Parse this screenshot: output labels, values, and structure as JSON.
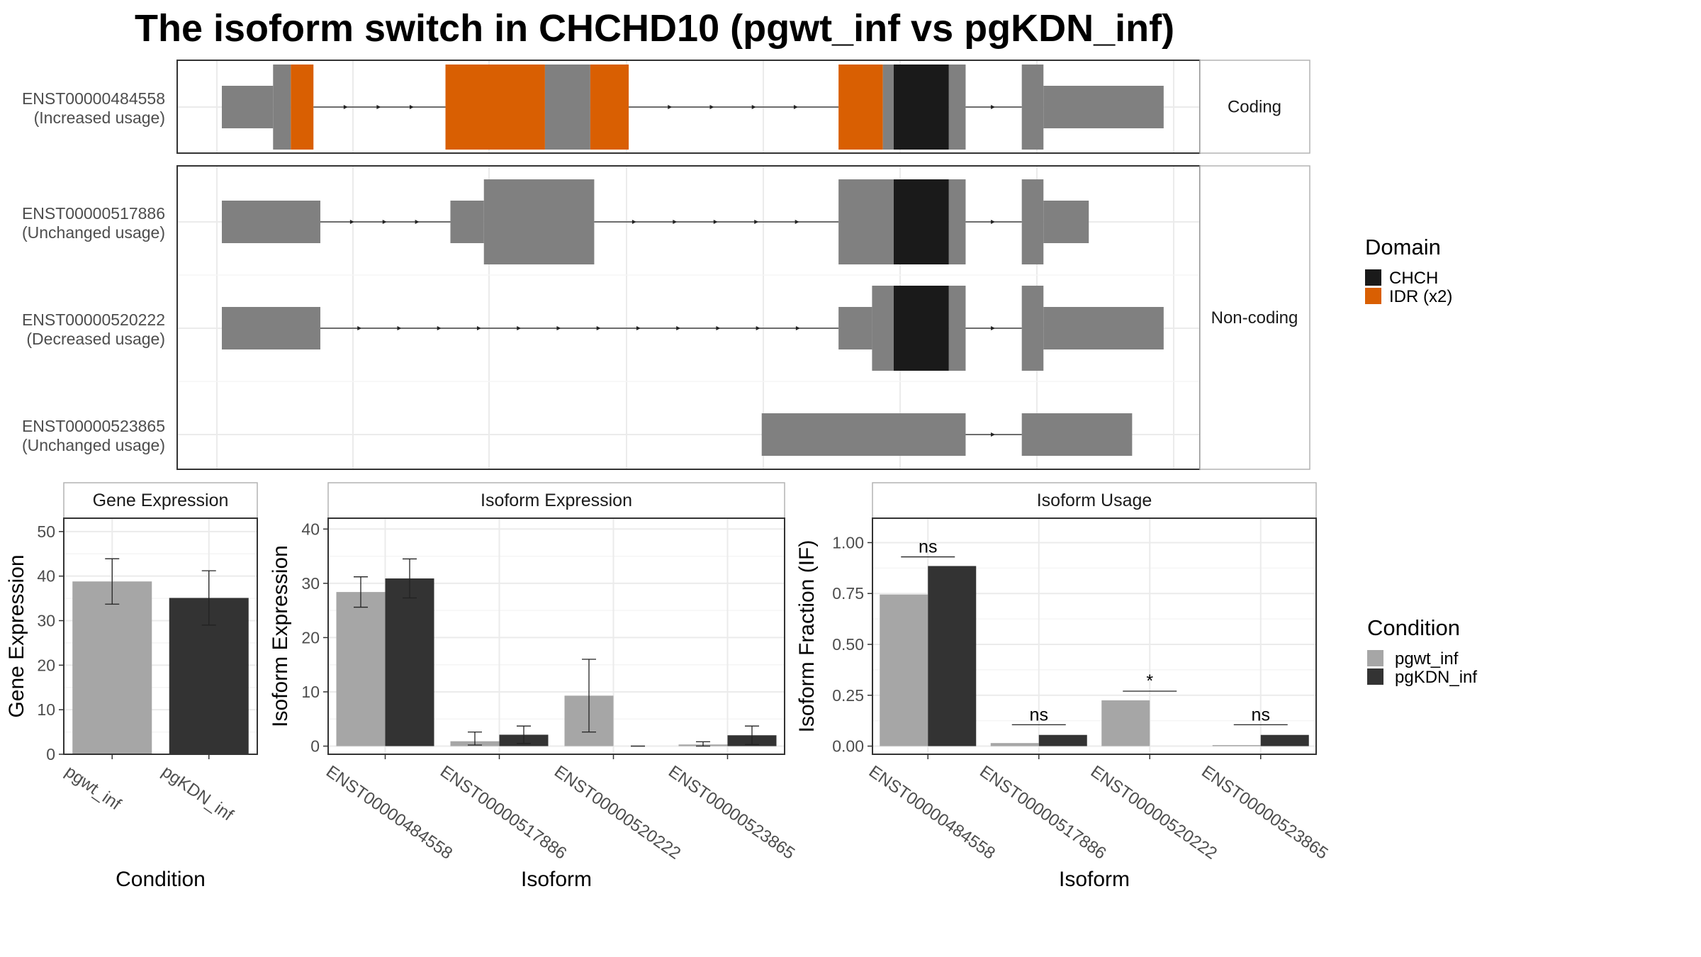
{
  "title": "The isoform switch in CHCHD10 (pgwt_inf vs pgKDN_inf)",
  "colors": {
    "exon": "#808080",
    "chch": "#1a1a1a",
    "idr": "#d95f02",
    "pgwt_inf": "#a6a6a6",
    "pgKDN_inf": "#333333",
    "grid": "#ebebeb",
    "panel_border": "#333333",
    "strip_border": "#b3b3b3"
  },
  "structure": {
    "facets": [
      "Coding",
      "Non-coding"
    ],
    "isoforms": [
      {
        "id": "ENST00000484558",
        "usage": "(Increased usage)",
        "facet": "Coding",
        "exons": [
          {
            "start": 0.0,
            "end": 0.52,
            "height": "utr"
          },
          {
            "start": 0.52,
            "end": 0.7,
            "height": "cds"
          },
          {
            "start": 0.7,
            "end": 0.93,
            "height": "cds",
            "domain": "IDR"
          },
          {
            "start": 2.27,
            "end": 3.28,
            "height": "cds",
            "domain": "IDR"
          },
          {
            "start": 3.28,
            "end": 3.74,
            "height": "cds"
          },
          {
            "start": 3.74,
            "end": 4.13,
            "height": "cds",
            "domain": "IDR"
          },
          {
            "start": 6.26,
            "end": 6.71,
            "height": "cds",
            "domain": "IDR"
          },
          {
            "start": 6.71,
            "end": 6.82,
            "height": "cds"
          },
          {
            "start": 6.82,
            "end": 7.38,
            "height": "cds",
            "domain": "CHCH"
          },
          {
            "start": 7.38,
            "end": 7.55,
            "height": "cds"
          },
          {
            "start": 8.12,
            "end": 8.34,
            "height": "cds"
          },
          {
            "start": 8.34,
            "end": 9.56,
            "height": "utr"
          }
        ]
      },
      {
        "id": "ENST00000517886",
        "usage": "(Unchanged usage)",
        "facet": "Non-coding",
        "exons": [
          {
            "start": 0.0,
            "end": 1.0,
            "height": "utr"
          },
          {
            "start": 2.32,
            "end": 2.66,
            "height": "utr"
          },
          {
            "start": 2.66,
            "end": 3.78,
            "height": "cds"
          },
          {
            "start": 6.26,
            "end": 6.82,
            "height": "cds"
          },
          {
            "start": 6.82,
            "end": 7.38,
            "height": "cds",
            "domain": "CHCH"
          },
          {
            "start": 7.38,
            "end": 7.55,
            "height": "cds"
          },
          {
            "start": 8.12,
            "end": 8.34,
            "height": "cds"
          },
          {
            "start": 8.34,
            "end": 8.8,
            "height": "utr"
          }
        ]
      },
      {
        "id": "ENST00000520222",
        "usage": "(Decreased usage)",
        "facet": "Non-coding",
        "exons": [
          {
            "start": 0.0,
            "end": 1.0,
            "height": "utr"
          },
          {
            "start": 6.26,
            "end": 6.6,
            "height": "utr"
          },
          {
            "start": 6.6,
            "end": 6.82,
            "height": "cds"
          },
          {
            "start": 6.82,
            "end": 7.38,
            "height": "cds",
            "domain": "CHCH"
          },
          {
            "start": 7.38,
            "end": 7.55,
            "height": "cds"
          },
          {
            "start": 8.12,
            "end": 8.34,
            "height": "cds"
          },
          {
            "start": 8.34,
            "end": 9.56,
            "height": "utr"
          }
        ]
      },
      {
        "id": "ENST00000523865",
        "usage": "(Unchanged usage)",
        "facet": "Non-coding",
        "exons": [
          {
            "start": 5.48,
            "end": 7.55,
            "height": "utr"
          },
          {
            "start": 8.12,
            "end": 9.24,
            "height": "utr"
          }
        ]
      }
    ],
    "legend": {
      "title": "Domain",
      "items": [
        {
          "label": "CHCH",
          "color": "#1a1a1a"
        },
        {
          "label": "IDR (x2)",
          "color": "#d95f02"
        }
      ]
    }
  },
  "chart_data": [
    {
      "type": "bar",
      "strip": "Gene Expression",
      "xlabel": "Condition",
      "ylabel": "Gene Expression",
      "ylim": [
        0,
        53
      ],
      "yticks": [
        0,
        10,
        20,
        30,
        40,
        50
      ],
      "categories": [
        "pgwt_inf",
        "pgKDN_inf"
      ],
      "values": [
        38.8,
        35.1
      ],
      "err_low": [
        33.7,
        29.0
      ],
      "err_high": [
        43.9,
        41.2
      ]
    },
    {
      "type": "bar",
      "strip": "Isoform Expression",
      "xlabel": "Isoform",
      "ylabel": "Isoform Expression",
      "ylim": [
        -1.5,
        42
      ],
      "yticks": [
        0,
        10,
        20,
        30,
        40
      ],
      "categories": [
        "ENST00000484558",
        "ENST00000517886",
        "ENST00000520222",
        "ENST00000523865"
      ],
      "series": [
        {
          "name": "pgwt_inf",
          "values": [
            28.4,
            0.9,
            9.3,
            0.3
          ],
          "err_low": [
            25.6,
            0.2,
            2.6,
            0.0
          ],
          "err_high": [
            31.2,
            2.6,
            16.0,
            0.8
          ]
        },
        {
          "name": "pgKDN_inf",
          "values": [
            30.9,
            2.1,
            0.0,
            2.0
          ],
          "err_low": [
            27.3,
            0.5,
            0.0,
            0.3
          ],
          "err_high": [
            34.5,
            3.7,
            0.0,
            3.7
          ]
        }
      ]
    },
    {
      "type": "bar",
      "strip": "Isoform Usage",
      "xlabel": "Isoform",
      "ylabel": "Isoform Fraction (IF)",
      "ylim": [
        -0.04,
        1.12
      ],
      "yticks": [
        0.0,
        0.25,
        0.5,
        0.75,
        1.0
      ],
      "ytick_labels": [
        "0.00",
        "0.25",
        "0.50",
        "0.75",
        "1.00"
      ],
      "categories": [
        "ENST00000484558",
        "ENST00000517886",
        "ENST00000520222",
        "ENST00000523865"
      ],
      "series": [
        {
          "name": "pgwt_inf",
          "values": [
            0.745,
            0.015,
            0.225,
            0.005
          ]
        },
        {
          "name": "pgKDN_inf",
          "values": [
            0.885,
            0.055,
            0.0,
            0.055
          ]
        }
      ],
      "significance": [
        "ns",
        "ns",
        "*",
        "ns"
      ],
      "sig_level": [
        0.93,
        0.105,
        0.27,
        0.105
      ]
    }
  ],
  "condition_legend": {
    "title": "Condition",
    "items": [
      {
        "label": "pgwt_inf",
        "color": "#a6a6a6"
      },
      {
        "label": "pgKDN_inf",
        "color": "#333333"
      }
    ]
  }
}
